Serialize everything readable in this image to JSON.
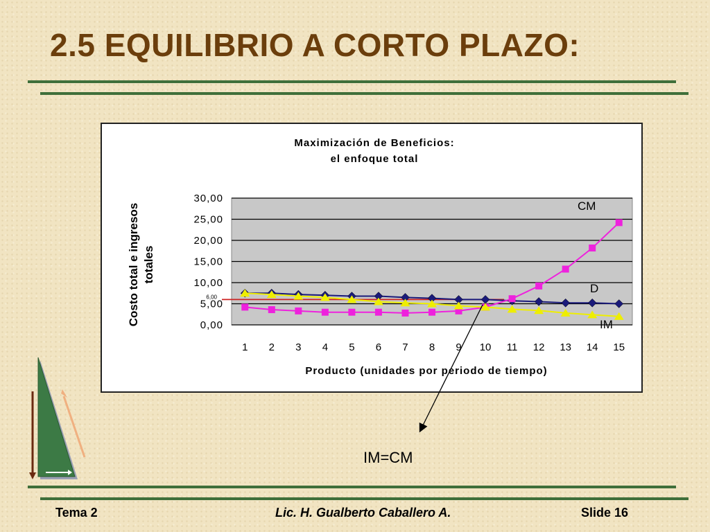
{
  "slide": {
    "title": "2.5 EQUILIBRIO A CORTO PLAZO:",
    "equation_label": "IM=CM",
    "footer": {
      "left": "Tema 2",
      "center": "Lic. H. Gualberto Caballero A.",
      "right": "Slide 16"
    }
  },
  "chart_data": {
    "type": "line",
    "title_line1": "Maximización de Beneficios:",
    "title_line2": "el enfoque total",
    "ylabel_line1": "Costo total e ingresos",
    "ylabel_line2": "totales",
    "xlabel": "Producto (unidades por periodo de tiempo)",
    "x": [
      1,
      2,
      3,
      4,
      5,
      6,
      7,
      8,
      9,
      10,
      11,
      12,
      13,
      14,
      15
    ],
    "ylim": [
      0,
      30
    ],
    "yticks": [
      "0,00",
      "5,00",
      "10,00",
      "15,00",
      "20,00",
      "25,00",
      "30,00"
    ],
    "grid": true,
    "reference_line": {
      "value": 6,
      "label": "6,00",
      "color": "#cc2222"
    },
    "series": [
      {
        "name": "D",
        "color": "#1a1a7a",
        "marker": "diamond",
        "values": [
          7.5,
          7.5,
          7.2,
          7.0,
          6.8,
          6.8,
          6.5,
          6.3,
          6.0,
          6.0,
          5.7,
          5.5,
          5.2,
          5.2,
          5.0
        ]
      },
      {
        "name": "CM",
        "color": "#ee22dd",
        "marker": "square",
        "values": [
          4.2,
          3.6,
          3.3,
          3.0,
          3.0,
          3.0,
          2.8,
          3.0,
          3.3,
          4.2,
          6.2,
          9.2,
          13.2,
          18.2,
          24.2
        ]
      },
      {
        "name": "IM",
        "color": "#eeee00",
        "marker": "triangle",
        "values": [
          7.5,
          7.2,
          6.8,
          6.5,
          6.0,
          5.5,
          5.2,
          5.0,
          4.5,
          4.2,
          3.7,
          3.4,
          2.8,
          2.4,
          2.0
        ]
      }
    ]
  }
}
